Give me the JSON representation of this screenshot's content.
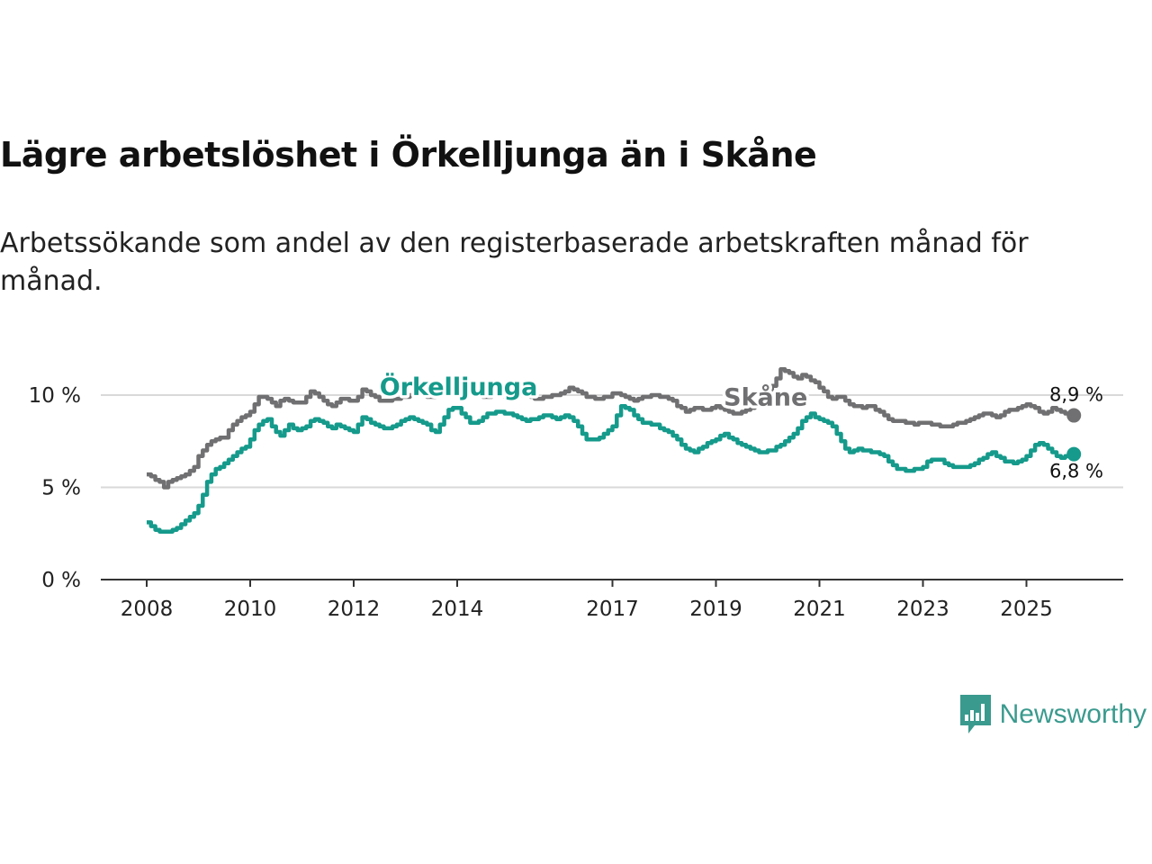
{
  "title": "Lägre arbetslöshet i Örkelljunga än i Skåne",
  "subtitle": "Arbetssökande som andel av den registerbaserade arbetskraften månad för månad.",
  "brand": {
    "name": "Newsworthy",
    "color": "#3a9a8e"
  },
  "chart_data": {
    "type": "line",
    "x_start": 2008.0,
    "x_step_months": 1,
    "ylim": [
      0,
      10
    ],
    "yticks": [
      {
        "v": 0,
        "label": "0 %"
      },
      {
        "v": 5,
        "label": "5 %"
      },
      {
        "v": 10,
        "label": "10 %"
      }
    ],
    "xticks": [
      {
        "v": 2008,
        "label": "2008"
      },
      {
        "v": 2010,
        "label": "2010"
      },
      {
        "v": 2012,
        "label": "2012"
      },
      {
        "v": 2014,
        "label": "2014"
      },
      {
        "v": 2017,
        "label": "2017"
      },
      {
        "v": 2019,
        "label": "2019"
      },
      {
        "v": 2021,
        "label": "2021"
      },
      {
        "v": 2023,
        "label": "2023"
      },
      {
        "v": 2025,
        "label": "2025"
      }
    ],
    "series": [
      {
        "name": "Skåne",
        "color": "#707072",
        "end_label": "8,9 %",
        "label_at": {
          "x": 2019.15,
          "y": 9.45
        },
        "keypoints": [
          [
            2008.0,
            5.7
          ],
          [
            2008.1,
            5.55
          ],
          [
            2008.25,
            5.3
          ],
          [
            2008.33,
            5.0
          ],
          [
            2008.42,
            5.3
          ],
          [
            2008.7,
            5.6
          ],
          [
            2008.9,
            6.0
          ],
          [
            2009.0,
            6.7
          ],
          [
            2009.15,
            7.3
          ],
          [
            2009.3,
            7.6
          ],
          [
            2009.5,
            7.7
          ],
          [
            2009.6,
            8.2
          ],
          [
            2009.75,
            8.6
          ],
          [
            2010.0,
            9.1
          ],
          [
            2010.1,
            9.6
          ],
          [
            2010.2,
            10.0
          ],
          [
            2010.35,
            9.8
          ],
          [
            2010.5,
            9.4
          ],
          [
            2010.6,
            9.8
          ],
          [
            2010.75,
            9.7
          ],
          [
            2010.9,
            9.6
          ],
          [
            2011.0,
            9.6
          ],
          [
            2011.15,
            10.2
          ],
          [
            2011.3,
            10.0
          ],
          [
            2011.45,
            9.6
          ],
          [
            2011.6,
            9.4
          ],
          [
            2011.75,
            9.8
          ],
          [
            2011.95,
            9.7
          ],
          [
            2012.05,
            9.7
          ],
          [
            2012.15,
            10.3
          ],
          [
            2012.35,
            10.0
          ],
          [
            2012.55,
            9.6
          ],
          [
            2012.6,
            9.7
          ],
          [
            2013.0,
            9.9
          ],
          [
            2013.2,
            10.1
          ],
          [
            2013.4,
            9.9
          ],
          [
            2013.6,
            10.0
          ],
          [
            2013.8,
            10.2
          ],
          [
            2014.0,
            10.0
          ],
          [
            2014.2,
            10.1
          ],
          [
            2014.5,
            9.9
          ],
          [
            2014.8,
            10.0
          ],
          [
            2015.0,
            9.9
          ],
          [
            2015.3,
            10.0
          ],
          [
            2015.5,
            9.8
          ],
          [
            2015.7,
            9.9
          ],
          [
            2015.9,
            10.0
          ],
          [
            2016.05,
            10.2
          ],
          [
            2016.2,
            10.4
          ],
          [
            2016.35,
            10.2
          ],
          [
            2016.5,
            9.9
          ],
          [
            2016.7,
            9.8
          ],
          [
            2016.9,
            9.9
          ],
          [
            2017.0,
            10.1
          ],
          [
            2017.2,
            10.0
          ],
          [
            2017.4,
            9.7
          ],
          [
            2017.6,
            9.9
          ],
          [
            2017.8,
            10.0
          ],
          [
            2018.0,
            9.9
          ],
          [
            2018.15,
            9.7
          ],
          [
            2018.3,
            9.3
          ],
          [
            2018.45,
            9.1
          ],
          [
            2018.6,
            9.3
          ],
          [
            2018.8,
            9.2
          ],
          [
            2019.0,
            9.4
          ],
          [
            2019.2,
            9.1
          ],
          [
            2019.4,
            9.0
          ],
          [
            2019.6,
            9.2
          ],
          [
            2019.8,
            9.6
          ],
          [
            2020.0,
            10.2
          ],
          [
            2020.15,
            10.8
          ],
          [
            2020.25,
            11.4
          ],
          [
            2020.4,
            11.2
          ],
          [
            2020.55,
            10.9
          ],
          [
            2020.7,
            11.1
          ],
          [
            2020.9,
            10.7
          ],
          [
            2021.0,
            10.4
          ],
          [
            2021.2,
            9.8
          ],
          [
            2021.4,
            9.9
          ],
          [
            2021.6,
            9.5
          ],
          [
            2021.8,
            9.3
          ],
          [
            2022.0,
            9.4
          ],
          [
            2022.2,
            9.0
          ],
          [
            2022.4,
            8.6
          ],
          [
            2022.6,
            8.6
          ],
          [
            2022.8,
            8.4
          ],
          [
            2023.0,
            8.5
          ],
          [
            2023.2,
            8.4
          ],
          [
            2023.4,
            8.3
          ],
          [
            2023.6,
            8.4
          ],
          [
            2023.8,
            8.6
          ],
          [
            2024.0,
            8.8
          ],
          [
            2024.2,
            9.0
          ],
          [
            2024.4,
            8.8
          ],
          [
            2024.6,
            9.1
          ],
          [
            2024.8,
            9.3
          ],
          [
            2025.0,
            9.5
          ],
          [
            2025.2,
            9.2
          ],
          [
            2025.35,
            9.0
          ],
          [
            2025.5,
            9.3
          ],
          [
            2025.65,
            9.1
          ],
          [
            2025.8,
            8.9
          ],
          [
            2025.95,
            8.9
          ]
        ]
      },
      {
        "name": "Örkelljunga",
        "color": "#159a8b",
        "end_label": "6,8 %",
        "label_at": {
          "x": 2012.5,
          "y": 10.0
        },
        "keypoints": [
          [
            2008.0,
            3.1
          ],
          [
            2008.1,
            2.9
          ],
          [
            2008.2,
            2.55
          ],
          [
            2008.35,
            2.55
          ],
          [
            2008.45,
            2.6
          ],
          [
            2008.6,
            2.8
          ],
          [
            2008.75,
            3.2
          ],
          [
            2008.9,
            3.5
          ],
          [
            2009.0,
            4.0
          ],
          [
            2009.1,
            4.7
          ],
          [
            2009.2,
            5.6
          ],
          [
            2009.35,
            6.0
          ],
          [
            2009.5,
            6.3
          ],
          [
            2009.65,
            6.7
          ],
          [
            2009.8,
            7.0
          ],
          [
            2009.95,
            7.3
          ],
          [
            2010.05,
            8.0
          ],
          [
            2010.2,
            8.5
          ],
          [
            2010.35,
            8.7
          ],
          [
            2010.45,
            8.1
          ],
          [
            2010.6,
            7.8
          ],
          [
            2010.75,
            8.4
          ],
          [
            2010.9,
            8.1
          ],
          [
            2011.05,
            8.2
          ],
          [
            2011.2,
            8.7
          ],
          [
            2011.35,
            8.6
          ],
          [
            2011.55,
            8.2
          ],
          [
            2011.7,
            8.4
          ],
          [
            2011.85,
            8.2
          ],
          [
            2012.0,
            8.0
          ],
          [
            2012.15,
            8.8
          ],
          [
            2012.3,
            8.6
          ],
          [
            2012.45,
            8.3
          ],
          [
            2012.65,
            8.2
          ],
          [
            2012.8,
            8.4
          ],
          [
            2012.95,
            8.6
          ],
          [
            2013.1,
            8.8
          ],
          [
            2013.25,
            8.6
          ],
          [
            2013.4,
            8.5
          ],
          [
            2013.55,
            7.9
          ],
          [
            2013.7,
            8.5
          ],
          [
            2013.85,
            9.3
          ],
          [
            2014.0,
            9.3
          ],
          [
            2014.15,
            8.8
          ],
          [
            2014.3,
            8.4
          ],
          [
            2014.45,
            8.7
          ],
          [
            2014.6,
            9.0
          ],
          [
            2014.8,
            9.1
          ],
          [
            2015.0,
            9.0
          ],
          [
            2015.15,
            8.8
          ],
          [
            2015.3,
            8.6
          ],
          [
            2015.5,
            8.7
          ],
          [
            2015.7,
            8.9
          ],
          [
            2015.9,
            8.7
          ],
          [
            2016.05,
            8.9
          ],
          [
            2016.2,
            8.8
          ],
          [
            2016.35,
            8.2
          ],
          [
            2016.5,
            7.6
          ],
          [
            2016.7,
            7.6
          ],
          [
            2016.85,
            7.9
          ],
          [
            2017.0,
            8.3
          ],
          [
            2017.15,
            9.4
          ],
          [
            2017.3,
            9.3
          ],
          [
            2017.45,
            8.8
          ],
          [
            2017.6,
            8.5
          ],
          [
            2017.8,
            8.4
          ],
          [
            2017.95,
            8.2
          ],
          [
            2018.1,
            8.0
          ],
          [
            2018.25,
            7.6
          ],
          [
            2018.4,
            7.1
          ],
          [
            2018.55,
            6.9
          ],
          [
            2018.7,
            7.1
          ],
          [
            2018.85,
            7.4
          ],
          [
            2019.0,
            7.6
          ],
          [
            2019.15,
            7.9
          ],
          [
            2019.3,
            7.6
          ],
          [
            2019.45,
            7.4
          ],
          [
            2019.6,
            7.2
          ],
          [
            2019.75,
            7.0
          ],
          [
            2019.9,
            6.9
          ],
          [
            2020.05,
            7.0
          ],
          [
            2020.2,
            7.2
          ],
          [
            2020.35,
            7.5
          ],
          [
            2020.5,
            7.9
          ],
          [
            2020.65,
            8.5
          ],
          [
            2020.8,
            9.0
          ],
          [
            2020.95,
            8.8
          ],
          [
            2021.1,
            8.6
          ],
          [
            2021.25,
            8.3
          ],
          [
            2021.4,
            7.6
          ],
          [
            2021.5,
            7.1
          ],
          [
            2021.6,
            6.8
          ],
          [
            2021.7,
            7.1
          ],
          [
            2021.85,
            7.0
          ],
          [
            2022.0,
            6.9
          ],
          [
            2022.2,
            6.8
          ],
          [
            2022.35,
            6.4
          ],
          [
            2022.5,
            6.0
          ],
          [
            2022.7,
            5.9
          ],
          [
            2022.85,
            6.0
          ],
          [
            2023.0,
            6.1
          ],
          [
            2023.1,
            6.5
          ],
          [
            2023.3,
            6.5
          ],
          [
            2023.45,
            6.3
          ],
          [
            2023.6,
            6.1
          ],
          [
            2023.8,
            6.1
          ],
          [
            2023.95,
            6.2
          ],
          [
            2024.1,
            6.5
          ],
          [
            2024.3,
            6.9
          ],
          [
            2024.45,
            6.7
          ],
          [
            2024.6,
            6.4
          ],
          [
            2024.75,
            6.3
          ],
          [
            2024.9,
            6.4
          ],
          [
            2025.05,
            6.9
          ],
          [
            2025.2,
            7.4
          ],
          [
            2025.35,
            7.3
          ],
          [
            2025.5,
            6.9
          ],
          [
            2025.65,
            6.6
          ],
          [
            2025.8,
            6.7
          ],
          [
            2025.95,
            6.8
          ]
        ]
      }
    ]
  }
}
